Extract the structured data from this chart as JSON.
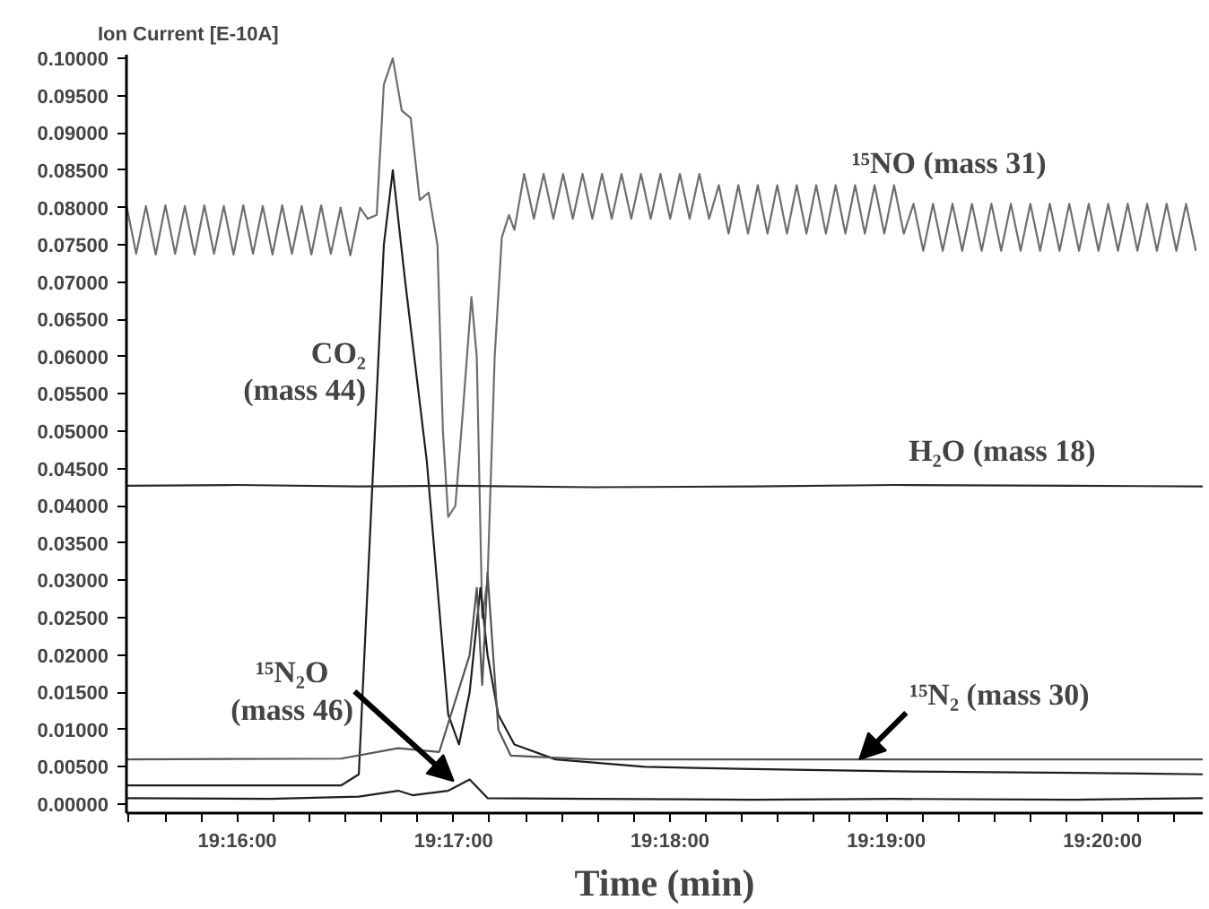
{
  "chart_data": {
    "type": "line",
    "ylabel": "Ion Current [E-10A]",
    "xlabel": "Time (min)",
    "xlim": [
      19.25813,
      19.34105
    ],
    "ylim": [
      -0.0012,
      0.1005
    ],
    "xticks": [
      {
        "value": 19.25833,
        "label": null
      },
      {
        "value": 19.26111,
        "label": null
      },
      {
        "value": 19.26389,
        "label": null
      },
      {
        "value": 19.26667,
        "label": "19:16:00"
      },
      {
        "value": 19.26944,
        "label": null
      },
      {
        "value": 19.27222,
        "label": null
      },
      {
        "value": 19.275,
        "label": null
      },
      {
        "value": 19.27778,
        "label": null
      },
      {
        "value": 19.28056,
        "label": null
      },
      {
        "value": 19.28333,
        "label": "19:17:00"
      },
      {
        "value": 19.28611,
        "label": null
      },
      {
        "value": 19.28889,
        "label": null
      },
      {
        "value": 19.29167,
        "label": null
      },
      {
        "value": 19.29444,
        "label": null
      },
      {
        "value": 19.29722,
        "label": null
      },
      {
        "value": 19.3,
        "label": "19:18:00"
      },
      {
        "value": 19.30278,
        "label": null
      },
      {
        "value": 19.30556,
        "label": null
      },
      {
        "value": 19.30833,
        "label": null
      },
      {
        "value": 19.31111,
        "label": null
      },
      {
        "value": 19.31389,
        "label": null
      },
      {
        "value": 19.31667,
        "label": "19:19:00"
      },
      {
        "value": 19.31944,
        "label": null
      },
      {
        "value": 19.32222,
        "label": null
      },
      {
        "value": 19.325,
        "label": null
      },
      {
        "value": 19.32778,
        "label": null
      },
      {
        "value": 19.33056,
        "label": null
      },
      {
        "value": 19.33333,
        "label": "19:20:00"
      },
      {
        "value": 19.33611,
        "label": null
      },
      {
        "value": 19.33889,
        "label": null
      }
    ],
    "yticks": [
      {
        "value": 0,
        "label": "0.00000"
      },
      {
        "value": 0.005,
        "label": "0.00500"
      },
      {
        "value": 0.01,
        "label": "0.01000"
      },
      {
        "value": 0.015,
        "label": "0.01500"
      },
      {
        "value": 0.02,
        "label": "0.02000"
      },
      {
        "value": 0.025,
        "label": "0.02500"
      },
      {
        "value": 0.03,
        "label": "0.03000"
      },
      {
        "value": 0.035,
        "label": "0.03500"
      },
      {
        "value": 0.04,
        "label": "0.04000"
      },
      {
        "value": 0.045,
        "label": "0.04500"
      },
      {
        "value": 0.05,
        "label": "0.05000"
      },
      {
        "value": 0.055,
        "label": "0.05500"
      },
      {
        "value": 0.06,
        "label": "0.06000"
      },
      {
        "value": 0.065,
        "label": "0.06500"
      },
      {
        "value": 0.07,
        "label": "0.07000"
      },
      {
        "value": 0.075,
        "label": "0.07500"
      },
      {
        "value": 0.08,
        "label": "0.08000"
      },
      {
        "value": 0.085,
        "label": "0.08500"
      },
      {
        "value": 0.09,
        "label": "0.09000"
      },
      {
        "value": 0.095,
        "label": "0.09500"
      },
      {
        "value": 0.1,
        "label": "0.10000"
      }
    ],
    "series": [
      {
        "color": "#6e6e6e",
        "x": [
          19.25813,
          19.25888,
          19.25963,
          19.26038,
          19.26113,
          19.26188,
          19.26263,
          19.26338,
          19.26413,
          19.26488,
          19.26563,
          19.26638,
          19.26713,
          19.26788,
          19.26863,
          19.26938,
          19.27013,
          19.27088,
          19.27163,
          19.27238,
          19.27313,
          19.27388,
          19.27463,
          19.27538,
          19.27613,
          19.27672,
          19.27741,
          19.27796,
          19.27865,
          19.27934,
          19.28003,
          19.28072,
          19.28141,
          19.28209,
          19.28251,
          19.28292,
          19.28347,
          19.28402,
          19.28471,
          19.28512,
          19.28554,
          19.28595,
          19.2865,
          19.28705,
          19.2876,
          19.28802,
          19.28877,
          19.28952,
          19.29027,
          19.29102,
          19.29177,
          19.29252,
          19.29327,
          19.29402,
          19.29477,
          19.29552,
          19.29627,
          19.29702,
          19.29777,
          19.29852,
          19.29927,
          19.30002,
          19.30077,
          19.30152,
          19.30227,
          19.30302,
          19.30377,
          19.30452,
          19.30527,
          19.30602,
          19.30677,
          19.30752,
          19.30827,
          19.30902,
          19.30977,
          19.31052,
          19.31127,
          19.31202,
          19.31277,
          19.31352,
          19.31427,
          19.31502,
          19.31577,
          19.31652,
          19.31727,
          19.31802,
          19.31877,
          19.31952,
          19.32027,
          19.32102,
          19.32177,
          19.32252,
          19.32327,
          19.32402,
          19.32477,
          19.32552,
          19.32627,
          19.32702,
          19.32777,
          19.32852,
          19.32927,
          19.33002,
          19.33077,
          19.33152,
          19.33227,
          19.33302,
          19.33377,
          19.33452,
          19.33527,
          19.33602,
          19.33677,
          19.33752,
          19.33827,
          19.33902,
          19.33977,
          19.34052
        ],
        "values": [
          0.0803,
          0.0738,
          0.0802,
          0.0737,
          0.0803,
          0.0738,
          0.0802,
          0.0737,
          0.0803,
          0.0738,
          0.0802,
          0.0737,
          0.0803,
          0.0738,
          0.0802,
          0.0737,
          0.0803,
          0.0738,
          0.0802,
          0.0737,
          0.0803,
          0.0738,
          0.08,
          0.0736,
          0.08,
          0.0785,
          0.079,
          0.0965,
          0.1,
          0.093,
          0.092,
          0.081,
          0.082,
          0.075,
          0.05,
          0.0385,
          0.04,
          0.052,
          0.068,
          0.06,
          0.025,
          0.03,
          0.06,
          0.076,
          0.079,
          0.077,
          0.0845,
          0.0785,
          0.0845,
          0.0785,
          0.0845,
          0.0785,
          0.0845,
          0.0785,
          0.0845,
          0.0785,
          0.0845,
          0.0785,
          0.0845,
          0.0785,
          0.0845,
          0.0785,
          0.0845,
          0.0785,
          0.0845,
          0.0785,
          0.083,
          0.0765,
          0.083,
          0.0765,
          0.083,
          0.0765,
          0.083,
          0.0765,
          0.083,
          0.0765,
          0.083,
          0.0765,
          0.083,
          0.0765,
          0.083,
          0.0765,
          0.083,
          0.0765,
          0.083,
          0.0765,
          0.0805,
          0.0742,
          0.0805,
          0.0742,
          0.0805,
          0.0742,
          0.0805,
          0.0742,
          0.0805,
          0.0742,
          0.0805,
          0.0742,
          0.0805,
          0.0742,
          0.0805,
          0.0742,
          0.0805,
          0.0742,
          0.0805,
          0.0742,
          0.0805,
          0.0742,
          0.0805,
          0.0742,
          0.0805,
          0.0742,
          0.0805,
          0.0742,
          0.0805,
          0.0742
        ]
      },
      {
        "color": "#1e1e1e",
        "x": [
          19.25813,
          19.27466,
          19.27603,
          19.277,
          19.27796,
          19.27865,
          19.27961,
          19.28127,
          19.28292,
          19.28375,
          19.28457,
          19.2854,
          19.28595,
          19.28678,
          19.28802,
          19.29118,
          19.29807,
          19.30634,
          19.31735,
          19.33113,
          19.34105
        ],
        "values": [
          0.0025,
          0.0025,
          0.004,
          0.04,
          0.075,
          0.085,
          0.07,
          0.046,
          0.012,
          0.008,
          0.015,
          0.029,
          0.02,
          0.012,
          0.008,
          0.006,
          0.005,
          0.0047,
          0.0044,
          0.0042,
          0.004
        ]
      },
      {
        "color": "#2a2a2a",
        "x": [
          19.25813,
          19.26667,
          19.27603,
          19.2832,
          19.29394,
          19.30634,
          19.31735,
          19.33113,
          19.34105
        ],
        "values": [
          0.0427,
          0.0428,
          0.0426,
          0.0427,
          0.0425,
          0.0426,
          0.0428,
          0.0427,
          0.0426
        ]
      },
      {
        "color": "#555555",
        "x": [
          19.25813,
          19.27466,
          19.27906,
          19.28223,
          19.28457,
          19.28512,
          19.28554,
          19.28595,
          19.28678,
          19.28774,
          19.29394,
          19.30634,
          19.31735,
          19.33113,
          19.34105
        ],
        "values": [
          0.006,
          0.0061,
          0.0075,
          0.007,
          0.02,
          0.029,
          0.016,
          0.031,
          0.01,
          0.0065,
          0.006,
          0.006,
          0.006,
          0.006,
          0.006
        ]
      },
      {
        "color": "#1e1e1e",
        "x": [
          19.25813,
          19.26915,
          19.27603,
          19.27906,
          19.28017,
          19.28292,
          19.28457,
          19.28595,
          19.29394,
          19.30634,
          19.31735,
          19.33113,
          19.34105
        ],
        "values": [
          0.0008,
          0.0007,
          0.001,
          0.0018,
          0.0012,
          0.0018,
          0.0033,
          0.0008,
          0.0007,
          0.0006,
          0.0007,
          0.0006,
          0.0008
        ]
      }
    ],
    "annotations": [
      {
        "text": "¹⁵NO (mass 31)",
        "x": 19.3215,
        "y": 0.0805
      },
      {
        "text": "CO₂\n(mass 44)",
        "x": 19.277,
        "y": 0.058
      },
      {
        "text": "H₂O (mass 18)",
        "x": 19.3256,
        "y": 0.0427
      },
      {
        "text": "¹⁵N₂O\n(mass 46)",
        "x": 19.28333,
        "y": 0.0031
      },
      {
        "text": "¹⁵N₂ (mass 30)",
        "x": 19.3146,
        "y": 0.006
      }
    ]
  }
}
